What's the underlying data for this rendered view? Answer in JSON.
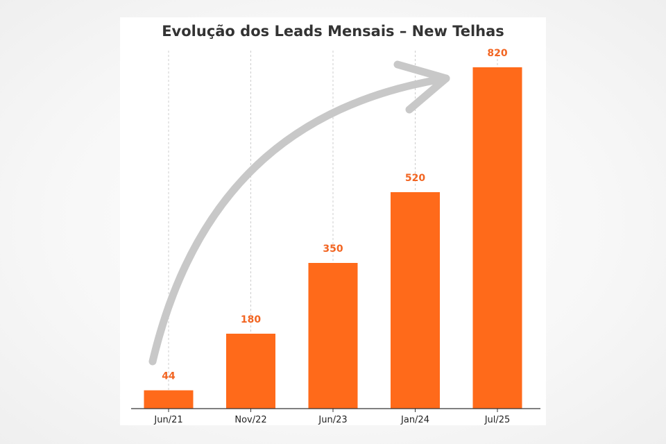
{
  "chart_data": {
    "type": "bar",
    "title": "Evolução dos Leads Mensais – New Telhas",
    "categories": [
      "Jun/21",
      "Nov/22",
      "Jun/23",
      "Jan/24",
      "Jul/25"
    ],
    "values": [
      44,
      180,
      350,
      520,
      820
    ],
    "data_labels": [
      "44",
      "180",
      "350",
      "520",
      "820"
    ],
    "xlabel": "",
    "ylabel": "",
    "ylim": [
      0,
      820
    ],
    "y_axis_visible": false,
    "grid": "vertical dashed",
    "legend": "none",
    "annotation": "curved upward arrow"
  },
  "colors": {
    "bar": "#ff6a1a",
    "label": "#f26522",
    "grid": "#cccccc",
    "arrow": "#c8c8c8",
    "title": "#333333"
  }
}
